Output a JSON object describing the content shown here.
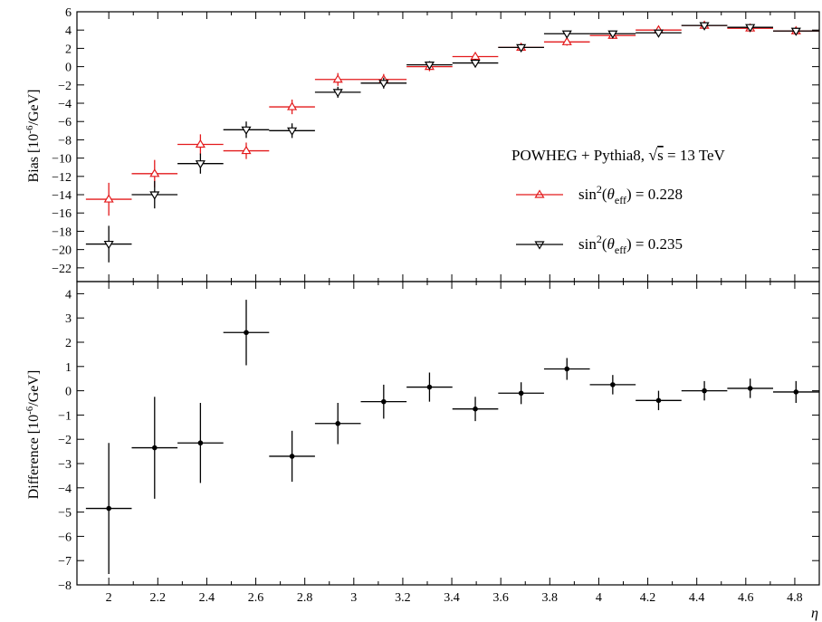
{
  "chart_data": [
    {
      "type": "scatter",
      "panel": "top",
      "ylabel": "Bias [10^-6/GeV]",
      "ylabel_parts": {
        "main": "Bias [10",
        "sup": "-6",
        "tail": "/GeV]"
      },
      "xlim": [
        1.87,
        4.9
      ],
      "ylim": [
        -23.5,
        6
      ],
      "x_ticks": [
        2,
        2.2,
        2.4,
        2.6,
        2.8,
        3,
        3.2,
        3.4,
        3.6,
        3.8,
        4,
        4.2,
        4.4,
        4.6,
        4.8
      ],
      "y_ticks": [
        6,
        4,
        2,
        0,
        -2,
        -4,
        -6,
        -8,
        -10,
        -12,
        -14,
        -16,
        -18,
        -20,
        -22
      ],
      "y_tick_labels": [
        "6",
        "4",
        "2",
        "0",
        "−2",
        "−4",
        "−6",
        "−8",
        "−10",
        "−12",
        "−14",
        "−16",
        "−18",
        "−20",
        "−22"
      ],
      "annotation": {
        "text_before": "POWHEG + Pythia8, ",
        "sqrt_s": "s",
        "text_after": " = 13 TeV"
      },
      "legend_placement": "right",
      "x_half_width": 0.0935,
      "series": [
        {
          "name": "sin²(θ_eff) = 0.228",
          "label_parts": {
            "pre": "sin",
            "sup": "2",
            "open": "(",
            "theta": "θ",
            "sub": "eff",
            "post": ") = 0.228"
          },
          "color": "#e31a1c",
          "marker": "triangle-up",
          "points": [
            {
              "x": 2.0,
              "y": -14.5,
              "err": 1.8
            },
            {
              "x": 2.187,
              "y": -11.7,
              "err": 1.5
            },
            {
              "x": 2.374,
              "y": -8.5,
              "err": 1.1
            },
            {
              "x": 2.561,
              "y": -9.2,
              "err": 0.9
            },
            {
              "x": 2.748,
              "y": -4.4,
              "err": 0.8
            },
            {
              "x": 2.935,
              "y": -1.4,
              "err": 0.7
            },
            {
              "x": 3.122,
              "y": -1.4,
              "err": 0.6
            },
            {
              "x": 3.309,
              "y": 0.0,
              "err": 0.5
            },
            {
              "x": 3.496,
              "y": 1.1,
              "err": 0.4
            },
            {
              "x": 3.683,
              "y": 2.1,
              "err": 0.4
            },
            {
              "x": 3.87,
              "y": 2.7,
              "err": 0.4
            },
            {
              "x": 4.057,
              "y": 3.4,
              "err": 0.3
            },
            {
              "x": 4.244,
              "y": 4.0,
              "err": 0.3
            },
            {
              "x": 4.431,
              "y": 4.5,
              "err": 0.3
            },
            {
              "x": 4.618,
              "y": 4.2,
              "err": 0.3
            },
            {
              "x": 4.805,
              "y": 3.9,
              "err": 0.3
            }
          ]
        },
        {
          "name": "sin²(θ_eff) = 0.235",
          "label_parts": {
            "pre": "sin",
            "sup": "2",
            "open": "(",
            "theta": "θ",
            "sub": "eff",
            "post": ") = 0.235"
          },
          "color": "#000000",
          "marker": "triangle-down",
          "points": [
            {
              "x": 2.0,
              "y": -19.4,
              "err": 2.0
            },
            {
              "x": 2.187,
              "y": -14.0,
              "err": 1.5
            },
            {
              "x": 2.374,
              "y": -10.6,
              "err": 1.1
            },
            {
              "x": 2.561,
              "y": -6.9,
              "err": 0.9
            },
            {
              "x": 2.748,
              "y": -7.0,
              "err": 0.8
            },
            {
              "x": 2.935,
              "y": -2.8,
              "err": 0.6
            },
            {
              "x": 3.122,
              "y": -1.8,
              "err": 0.6
            },
            {
              "x": 3.309,
              "y": 0.2,
              "err": 0.4
            },
            {
              "x": 3.496,
              "y": 0.4,
              "err": 0.4
            },
            {
              "x": 3.683,
              "y": 2.1,
              "err": 0.3
            },
            {
              "x": 3.87,
              "y": 3.6,
              "err": 0.3
            },
            {
              "x": 4.057,
              "y": 3.6,
              "err": 0.3
            },
            {
              "x": 4.244,
              "y": 3.7,
              "err": 0.3
            },
            {
              "x": 4.431,
              "y": 4.5,
              "err": 0.3
            },
            {
              "x": 4.618,
              "y": 4.3,
              "err": 0.3
            },
            {
              "x": 4.805,
              "y": 3.9,
              "err": 0.3
            }
          ]
        }
      ]
    },
    {
      "type": "scatter",
      "panel": "bottom",
      "ylabel": "Difference [10^-6/GeV]",
      "ylabel_parts": {
        "main": "Difference [10",
        "sup": "-6",
        "tail": "/GeV]"
      },
      "xlabel": "η",
      "xlim": [
        1.87,
        4.9
      ],
      "ylim": [
        -8,
        4.5
      ],
      "x_ticks": [
        2,
        2.2,
        2.4,
        2.6,
        2.8,
        3,
        3.2,
        3.4,
        3.6,
        3.8,
        4,
        4.2,
        4.4,
        4.6,
        4.8
      ],
      "x_tick_labels": [
        "2",
        "2.2",
        "2.4",
        "2.6",
        "2.8",
        "3",
        "3.2",
        "3.4",
        "3.6",
        "3.8",
        "4",
        "4.2",
        "4.4",
        "4.6",
        "4.8"
      ],
      "y_ticks": [
        4,
        3,
        2,
        1,
        0,
        -1,
        -2,
        -3,
        -4,
        -5,
        -6,
        -7,
        -8
      ],
      "y_tick_labels": [
        "4",
        "3",
        "2",
        "1",
        "0",
        "−1",
        "−2",
        "−3",
        "−4",
        "−5",
        "−6",
        "−7",
        "−8"
      ],
      "x_half_width": 0.0935,
      "series": [
        {
          "color": "#000000",
          "marker": "dot",
          "points": [
            {
              "x": 2.0,
              "y": -4.85,
              "err": 2.7
            },
            {
              "x": 2.187,
              "y": -2.35,
              "err": 2.1
            },
            {
              "x": 2.374,
              "y": -2.15,
              "err": 1.65
            },
            {
              "x": 2.561,
              "y": 2.4,
              "err": 1.35
            },
            {
              "x": 2.748,
              "y": -2.7,
              "err": 1.05
            },
            {
              "x": 2.935,
              "y": -1.35,
              "err": 0.85
            },
            {
              "x": 3.122,
              "y": -0.45,
              "err": 0.7
            },
            {
              "x": 3.309,
              "y": 0.15,
              "err": 0.6
            },
            {
              "x": 3.496,
              "y": -0.75,
              "err": 0.5
            },
            {
              "x": 3.683,
              "y": -0.1,
              "err": 0.45
            },
            {
              "x": 3.87,
              "y": 0.9,
              "err": 0.45
            },
            {
              "x": 4.057,
              "y": 0.25,
              "err": 0.4
            },
            {
              "x": 4.244,
              "y": -0.4,
              "err": 0.4
            },
            {
              "x": 4.431,
              "y": 0.0,
              "err": 0.4
            },
            {
              "x": 4.618,
              "y": 0.1,
              "err": 0.4
            },
            {
              "x": 4.805,
              "y": -0.05,
              "err": 0.45
            }
          ]
        }
      ]
    }
  ]
}
